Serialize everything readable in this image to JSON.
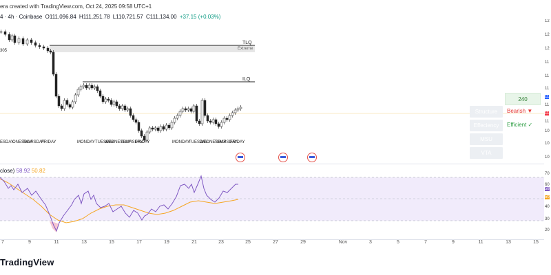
{
  "header": {
    "credit": "era created with TradingView.com, Oct 24, 2025 09:58 UTC+1",
    "symbol_fragment": "4 · 4h · Coinbase",
    "ohlc": {
      "open": "O111,096.84",
      "high": "H111,251.78",
      "low": "L110,721.57",
      "close": "C111,134.00",
      "change": "+37.15 (+0.03%)"
    }
  },
  "chart": {
    "left_edge_label": "305",
    "levels": [
      {
        "name": "TLQ",
        "zone_label": "Extreme"
      },
      {
        "name": "ILQ"
      }
    ],
    "day_labels": [
      "ESDAY",
      "ONESDAY",
      "THURSDAY",
      "FRIDAY",
      "MONDAY",
      "TUESDAY",
      "WEDNESDAY",
      "THURSDAY",
      "FRIDAY",
      "MONDAY",
      "TUESDAY",
      "WEDNESDAY",
      "THURSDAY",
      "FRIDAY"
    ]
  },
  "side_panel": {
    "count": "240",
    "rows": [
      {
        "label": "Structure",
        "value": "Bearish ▼",
        "color": "#e53935"
      },
      {
        "label": "Effeciency",
        "value": "Efficient ✓",
        "color": "#2e9e44"
      },
      {
        "label": "MSU",
        "value": ""
      },
      {
        "label": "VTA",
        "value": ""
      }
    ]
  },
  "rsi": {
    "label": "close)",
    "value1": "58.92",
    "value2": "50.82",
    "color_rsi": "#7e57c2",
    "color_ma": "#f5a623",
    "axis": [
      "70",
      "60",
      "58",
      "50",
      "40",
      "30",
      "20"
    ]
  },
  "price_axis": [
    "12",
    "12",
    "12",
    "11",
    "11",
    "11",
    "11",
    "11",
    "11",
    "11",
    "10",
    "10",
    "10"
  ],
  "time_axis": [
    "7",
    "9",
    "11",
    "13",
    "15",
    "17",
    "19",
    "21",
    "23",
    "25",
    "27",
    "29",
    "Nov",
    "3",
    "5",
    "7",
    "9",
    "11",
    "13",
    "15"
  ],
  "brand": "TradingView"
}
